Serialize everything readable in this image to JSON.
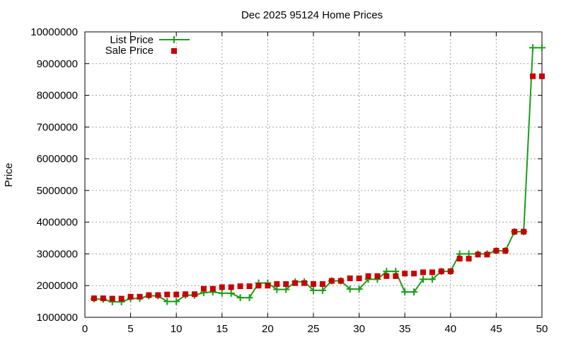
{
  "chart_data": {
    "type": "line",
    "title": "Dec 2025 95124 Home Prices",
    "xlabel": "",
    "ylabel": "Price",
    "xlim": [
      0,
      50
    ],
    "ylim": [
      1000000,
      10000000
    ],
    "xticks": [
      0,
      5,
      10,
      15,
      20,
      25,
      30,
      35,
      40,
      45,
      50
    ],
    "yticks": [
      1000000,
      2000000,
      3000000,
      4000000,
      5000000,
      6000000,
      7000000,
      8000000,
      9000000,
      10000000
    ],
    "grid": true,
    "legend_position": "top-left",
    "x": [
      1,
      2,
      3,
      4,
      5,
      6,
      7,
      8,
      9,
      10,
      11,
      12,
      13,
      14,
      15,
      16,
      17,
      18,
      19,
      20,
      21,
      22,
      23,
      24,
      25,
      26,
      27,
      28,
      29,
      30,
      31,
      32,
      33,
      34,
      35,
      36,
      37,
      38,
      39,
      40,
      41,
      42,
      43,
      44,
      45,
      46,
      47,
      48,
      49,
      50
    ],
    "series": [
      {
        "name": "List Price",
        "style": "linespoints",
        "color": "#1a9e1a",
        "marker": "plus",
        "values": [
          1580000,
          1570000,
          1490000,
          1490000,
          1590000,
          1600000,
          1680000,
          1680000,
          1500000,
          1500000,
          1700000,
          1700000,
          1780000,
          1800000,
          1760000,
          1760000,
          1620000,
          1620000,
          2080000,
          2080000,
          1880000,
          1880000,
          2120000,
          2120000,
          1850000,
          1850000,
          2150000,
          2150000,
          1890000,
          1890000,
          2200000,
          2200000,
          2450000,
          2450000,
          1800000,
          1800000,
          2200000,
          2200000,
          2450000,
          2450000,
          3000000,
          3000000,
          3000000,
          3000000,
          3100000,
          3100000,
          3700000,
          3700000,
          9500000,
          9500000
        ]
      },
      {
        "name": "Sale Price",
        "style": "points",
        "color": "#c80000",
        "marker": "square",
        "values": [
          1600000,
          1600000,
          1590000,
          1590000,
          1650000,
          1650000,
          1700000,
          1700000,
          1720000,
          1720000,
          1730000,
          1730000,
          1900000,
          1900000,
          1950000,
          1950000,
          1980000,
          1980000,
          2000000,
          2000000,
          2050000,
          2050000,
          2080000,
          2080000,
          2050000,
          2050000,
          2150000,
          2150000,
          2230000,
          2230000,
          2300000,
          2300000,
          2300000,
          2300000,
          2380000,
          2380000,
          2420000,
          2420000,
          2450000,
          2450000,
          2850000,
          2850000,
          2980000,
          2980000,
          3100000,
          3100000,
          3700000,
          3700000,
          8600000,
          8600000
        ]
      }
    ]
  }
}
